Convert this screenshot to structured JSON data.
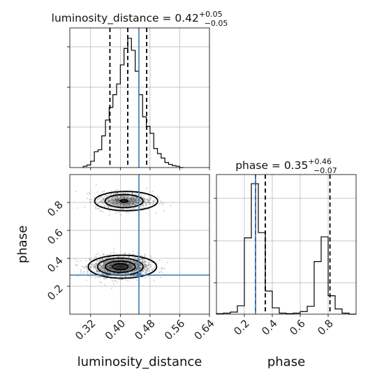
{
  "chart_data": [
    {
      "type": "histogram",
      "panel": "top-left",
      "parameter": "luminosity_distance",
      "title": {
        "param": "luminosity_distance",
        "median": "0.42",
        "plus": "+0.05",
        "minus": "−0.05"
      },
      "bin_edges": [
        0.3,
        0.31,
        0.32,
        0.33,
        0.34,
        0.35,
        0.36,
        0.37,
        0.38,
        0.39,
        0.4,
        0.41,
        0.42,
        0.43,
        0.44,
        0.45,
        0.46,
        0.47,
        0.48,
        0.49,
        0.5,
        0.51,
        0.52,
        0.53,
        0.54,
        0.55,
        0.56,
        0.57
      ],
      "counts": [
        2,
        4,
        10,
        25,
        28,
        50,
        75,
        95,
        115,
        132,
        162,
        188,
        204,
        185,
        152,
        115,
        80,
        65,
        54,
        30,
        22,
        15,
        8,
        5,
        3,
        2,
        0
      ],
      "quantile_lines": [
        0.372,
        0.42,
        0.471
      ],
      "truth": 0.45,
      "xlim": [
        0.264,
        0.64
      ],
      "grid": true
    },
    {
      "type": "histogram",
      "panel": "bottom-right",
      "parameter": "phase",
      "title": {
        "param": "phase",
        "median": "0.35",
        "plus": "+0.46",
        "minus": "−0.07"
      },
      "bin_edges": [
        0.0,
        0.05,
        0.1,
        0.15,
        0.2,
        0.25,
        0.3,
        0.35,
        0.4,
        0.45,
        0.5,
        0.55,
        0.6,
        0.65,
        0.7,
        0.75,
        0.8,
        0.85,
        0.9,
        0.95,
        1.0
      ],
      "counts": [
        1,
        2,
        4,
        16,
        145,
        248,
        155,
        44,
        12,
        2,
        1,
        2,
        5,
        15,
        100,
        147,
        35,
        10,
        2,
        0
      ],
      "quantile_lines": [
        0.28,
        0.35,
        0.813
      ],
      "truth": 0.28,
      "xlim": [
        0.0,
        1.0
      ],
      "xlabel": "phase",
      "xticks": [
        "0.2",
        "0.4",
        "0.6",
        "0.8"
      ],
      "grid": true
    },
    {
      "type": "scatter",
      "panel": "bottom-left",
      "x_parameter": "luminosity_distance",
      "y_parameter": "phase",
      "xlabel": "luminosity_distance",
      "ylabel": "phase",
      "xlim": [
        0.264,
        0.64
      ],
      "ylim": [
        0.0,
        1.0
      ],
      "xticks": [
        "0.32",
        "0.40",
        "0.48",
        "0.56",
        "0.64"
      ],
      "yticks": [
        "0.2",
        "0.4",
        "0.6",
        "0.8"
      ],
      "modes": [
        {
          "x_center": 0.4,
          "y_center": 0.34,
          "x_sd": 0.035,
          "y_sd": 0.035,
          "weight": 0.7
        },
        {
          "x_center": 0.41,
          "y_center": 0.81,
          "x_sd": 0.033,
          "y_sd": 0.03,
          "weight": 0.3
        }
      ],
      "truth": {
        "x": 0.45,
        "y": 0.28
      },
      "grid": true
    }
  ],
  "colors": {
    "truth": "#3a78b5",
    "hist": "#000000",
    "grid": "#b0b0b0",
    "points": "#555555"
  }
}
